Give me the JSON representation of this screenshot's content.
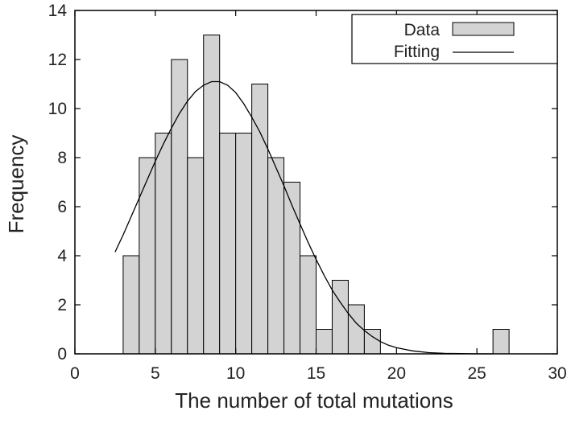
{
  "chart_data": {
    "type": "bar",
    "title": "",
    "xlabel": "The number of total mutations",
    "ylabel": "Frequency",
    "xlim": [
      0,
      30
    ],
    "ylim": [
      0,
      14
    ],
    "xticks": [
      0,
      5,
      10,
      15,
      20,
      25,
      30
    ],
    "yticks": [
      0,
      2,
      4,
      6,
      8,
      10,
      12,
      14
    ],
    "bin_width": 1,
    "series": [
      {
        "name": "Data",
        "kind": "histogram",
        "bin_starts": [
          3,
          4,
          5,
          6,
          7,
          8,
          9,
          10,
          11,
          12,
          13,
          14,
          15,
          16,
          17,
          18,
          26
        ],
        "values": [
          4,
          8,
          9,
          12,
          8,
          13,
          9,
          9,
          11,
          8,
          7,
          4,
          1,
          3,
          2,
          1,
          1
        ],
        "fill": "#d3d3d3"
      },
      {
        "name": "Fitting",
        "kind": "line",
        "x": [
          2.5,
          3,
          3.5,
          4,
          4.5,
          5,
          5.5,
          6,
          6.5,
          7,
          7.5,
          8,
          8.5,
          9,
          9.5,
          10,
          10.5,
          11,
          11.5,
          12,
          12.5,
          13,
          13.5,
          14,
          14.5,
          15,
          15.5,
          16,
          16.5,
          17,
          17.5,
          18,
          18.5,
          19,
          19.5,
          20,
          21,
          22,
          23,
          24,
          25,
          26
        ],
        "y": [
          4.15,
          4.85,
          5.6,
          6.35,
          7.1,
          7.85,
          8.55,
          9.2,
          9.8,
          10.3,
          10.7,
          10.95,
          11.1,
          11.1,
          10.95,
          10.65,
          10.2,
          9.65,
          9.05,
          8.35,
          7.6,
          6.85,
          6.05,
          5.3,
          4.55,
          3.85,
          3.2,
          2.6,
          2.1,
          1.65,
          1.25,
          0.95,
          0.7,
          0.5,
          0.35,
          0.25,
          0.12,
          0.05,
          0.02,
          0.01,
          0.0,
          0.0
        ],
        "color": "#000000"
      }
    ],
    "legend": {
      "position": "top-right",
      "entries": [
        "Data",
        "Fitting"
      ]
    }
  }
}
